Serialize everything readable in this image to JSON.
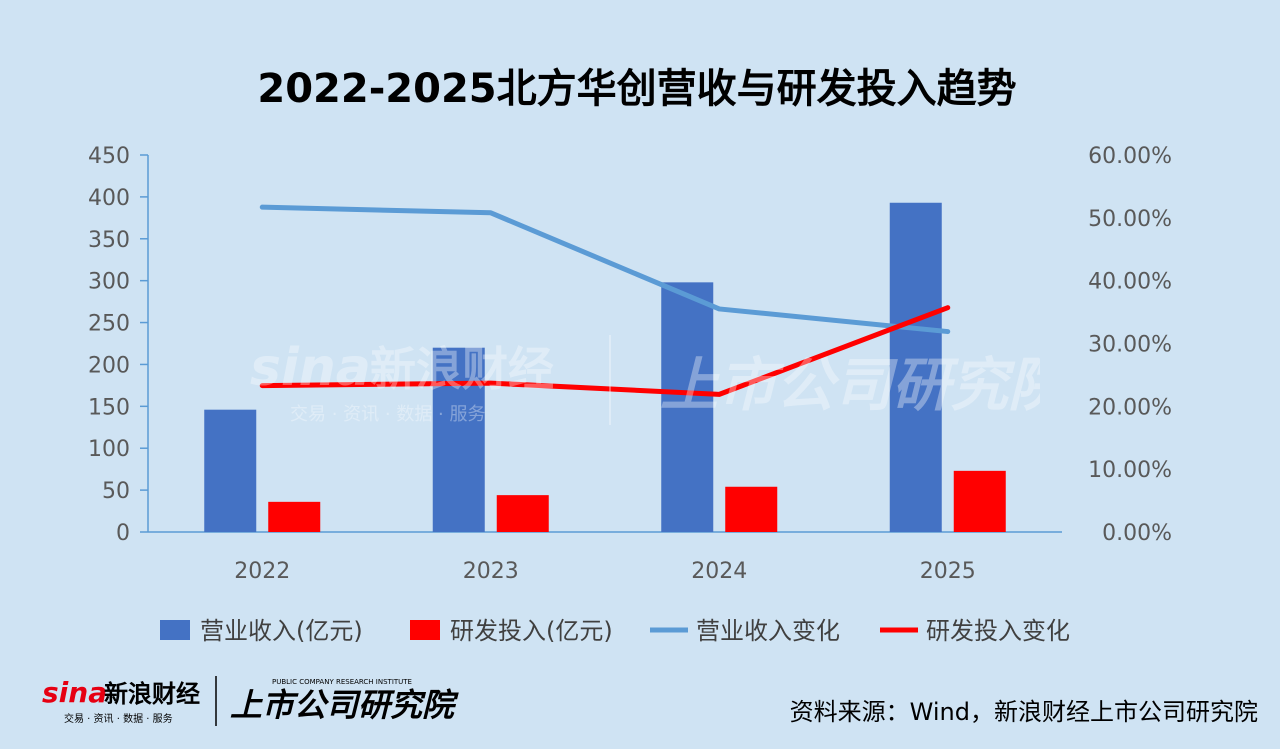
{
  "chart_data": {
    "type": "bar",
    "title": "2022-2025北方华创营收与研发投入趋势",
    "categories": [
      "2022",
      "2023",
      "2024",
      "2025"
    ],
    "series": [
      {
        "name": "营业收入(亿元)",
        "kind": "bar",
        "axis": "left",
        "color": "#4472c4",
        "values": [
          146,
          220,
          298,
          393
        ]
      },
      {
        "name": "研发投入(亿元)",
        "kind": "bar",
        "axis": "left",
        "color": "#ff0000",
        "values": [
          36,
          44,
          54,
          73
        ]
      },
      {
        "name": "营业收入变化",
        "kind": "line",
        "axis": "right",
        "color": "#5b9bd5",
        "values": [
          0.517,
          0.508,
          0.355,
          0.319
        ]
      },
      {
        "name": "研发投入变化",
        "kind": "line",
        "axis": "right",
        "color": "#ff0000",
        "values": [
          0.233,
          0.237,
          0.219,
          0.357
        ]
      }
    ],
    "left_axis": {
      "ylim": [
        0,
        450
      ],
      "ticks": [
        "0",
        "50",
        "100",
        "150",
        "200",
        "250",
        "300",
        "350",
        "400",
        "450"
      ]
    },
    "right_axis": {
      "ylim": [
        0,
        0.6
      ],
      "ticks": [
        "0.00%",
        "10.00%",
        "20.00%",
        "30.00%",
        "40.00%",
        "50.00%",
        "60.00%"
      ]
    },
    "legend_position": "bottom",
    "grid": false
  },
  "brand": {
    "sina_logo": "sina",
    "sina_name": "新浪财经",
    "sina_sub": "交易 · 资讯 · 数据 · 服务",
    "institute_name": "上市公司研究院",
    "institute_sub": "PUBLIC COMPANY RESEARCH INSTITUTE"
  },
  "source": "资料来源：Wind，新浪财经上市公司研究院"
}
